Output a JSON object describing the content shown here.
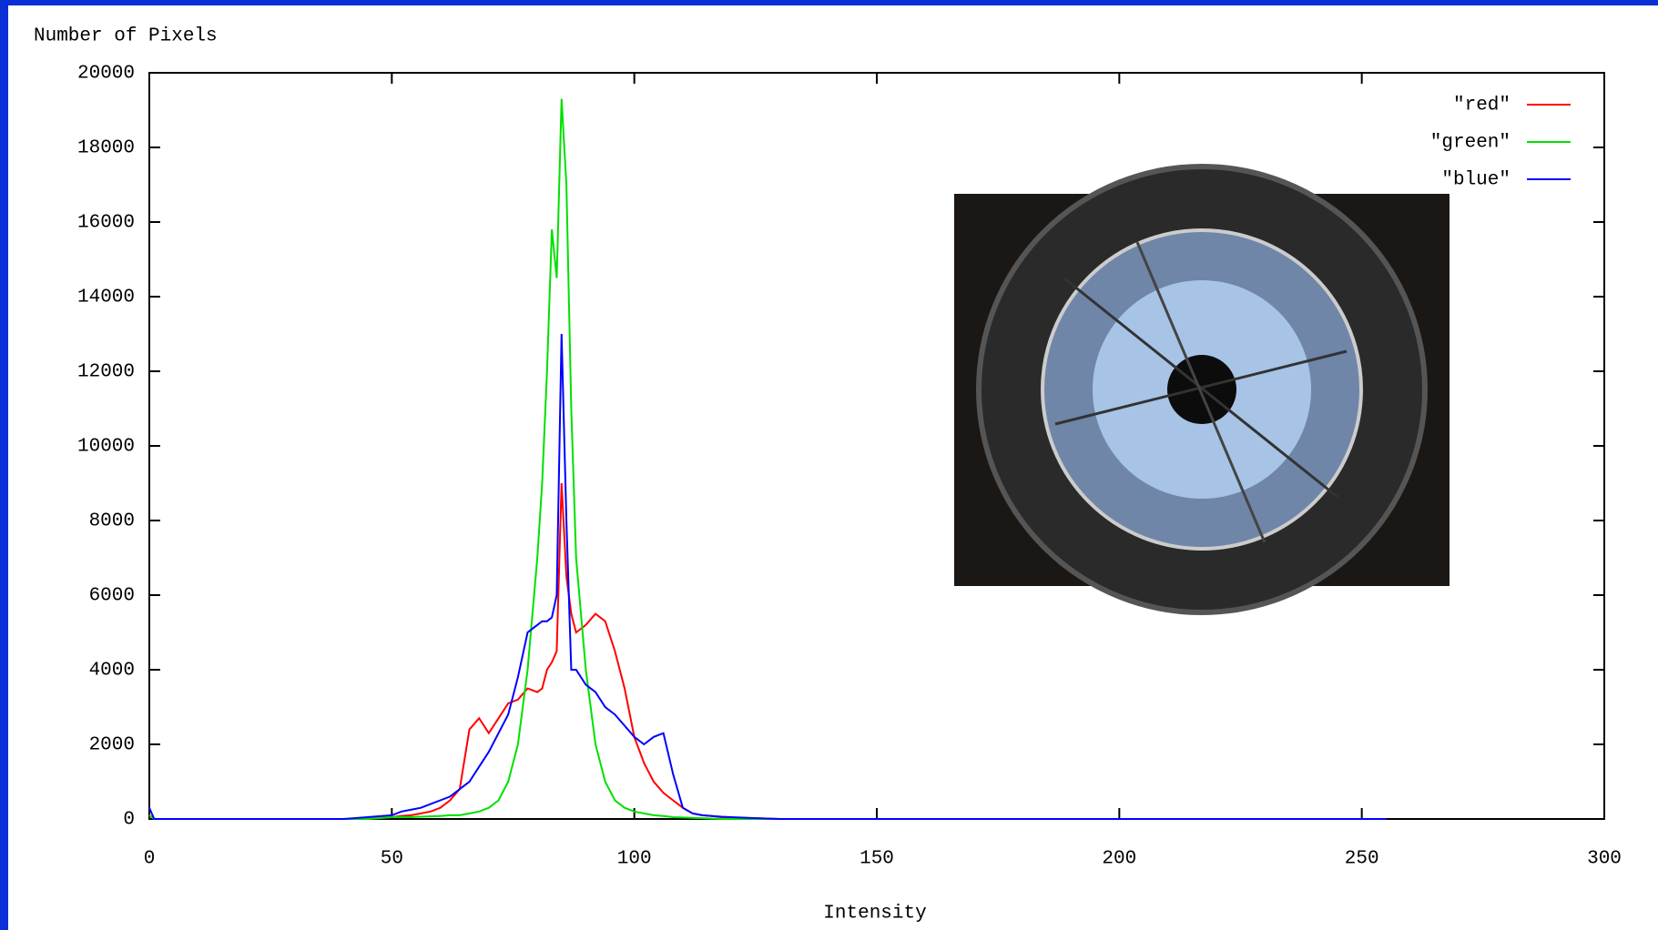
{
  "chart_data": {
    "type": "line",
    "y_label": "Number of Pixels",
    "x_label": "Intensity",
    "xlim": [
      0,
      300
    ],
    "xticks": [
      0,
      50,
      100,
      150,
      200,
      250,
      300
    ],
    "ylim": [
      0,
      20000
    ],
    "yticks": [
      0,
      2000,
      4000,
      6000,
      8000,
      10000,
      12000,
      14000,
      16000,
      18000,
      20000
    ],
    "legend": "top-right",
    "x": [
      0,
      1,
      10,
      20,
      30,
      40,
      45,
      50,
      52,
      54,
      56,
      58,
      60,
      62,
      64,
      66,
      68,
      70,
      72,
      74,
      76,
      78,
      80,
      81,
      82,
      83,
      84,
      85,
      86,
      87,
      88,
      90,
      92,
      94,
      96,
      98,
      100,
      102,
      104,
      106,
      108,
      110,
      112,
      114,
      116,
      118,
      120,
      125,
      130,
      150,
      200,
      255
    ],
    "series": [
      {
        "name": "\"red\"",
        "color": "#ff0000",
        "values": [
          100,
          0,
          0,
          0,
          0,
          0,
          0,
          50,
          80,
          100,
          150,
          200,
          300,
          500,
          800,
          2400,
          2700,
          2300,
          2700,
          3100,
          3200,
          3500,
          3400,
          3500,
          4000,
          4200,
          4500,
          9000,
          6500,
          5500,
          5000,
          5200,
          5500,
          5300,
          4500,
          3500,
          2200,
          1500,
          1000,
          700,
          500,
          300,
          150,
          100,
          80,
          50,
          40,
          20,
          0,
          0,
          0,
          0
        ]
      },
      {
        "name": "\"green\"",
        "color": "#00e000",
        "values": [
          100,
          0,
          0,
          0,
          0,
          0,
          0,
          50,
          50,
          50,
          60,
          70,
          80,
          100,
          100,
          150,
          200,
          300,
          500,
          1000,
          2000,
          4000,
          7000,
          9000,
          12000,
          15800,
          14500,
          19300,
          17000,
          11000,
          7000,
          4000,
          2000,
          1000,
          500,
          300,
          200,
          150,
          100,
          80,
          50,
          40,
          30,
          20,
          10,
          0,
          0,
          0,
          0,
          0,
          0,
          0
        ]
      },
      {
        "name": "\"blue\"",
        "color": "#0000ff",
        "values": [
          300,
          0,
          0,
          0,
          0,
          0,
          50,
          100,
          200,
          250,
          300,
          400,
          500,
          600,
          800,
          1000,
          1400,
          1800,
          2300,
          2800,
          3800,
          5000,
          5200,
          5300,
          5300,
          5400,
          6000,
          13000,
          8000,
          4000,
          4000,
          3600,
          3400,
          3000,
          2800,
          2500,
          2200,
          2000,
          2200,
          2300,
          1200,
          300,
          150,
          100,
          80,
          60,
          50,
          20,
          0,
          0,
          0,
          0
        ]
      }
    ]
  }
}
